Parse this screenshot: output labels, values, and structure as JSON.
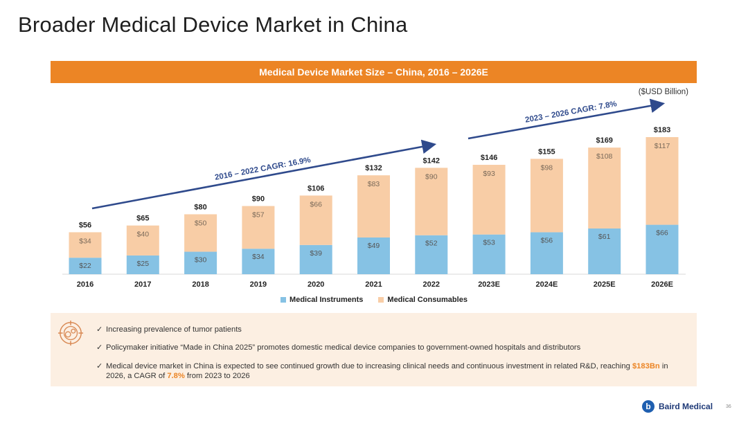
{
  "page": {
    "title": "Broader Medical Device Market in China",
    "banner": "Medical Device Market Size – China, 2016 – 2026E",
    "units": "($USD Billion)",
    "page_number": "36"
  },
  "chart_data": {
    "type": "bar",
    "stacked": true,
    "title": "Medical Device Market Size – China, 2016 – 2026E",
    "ylabel": "($USD Billion)",
    "categories": [
      "2016",
      "2017",
      "2018",
      "2019",
      "2020",
      "2021",
      "2022",
      "2023E",
      "2024E",
      "2025E",
      "2026E"
    ],
    "series": [
      {
        "name": "Medical Instruments",
        "color": "#86c2e4",
        "values": [
          22,
          25,
          30,
          34,
          39,
          49,
          52,
          53,
          56,
          61,
          66
        ],
        "labels": [
          "$22",
          "$25",
          "$30",
          "$34",
          "$39",
          "$49",
          "$52",
          "$53",
          "$56",
          "$61",
          "$66"
        ]
      },
      {
        "name": "Medical Consumables",
        "color": "#f8cda6",
        "values": [
          34,
          40,
          50,
          57,
          66,
          83,
          90,
          93,
          98,
          108,
          117
        ],
        "labels": [
          "$34",
          "$40",
          "$50",
          "$57",
          "$66",
          "$83",
          "$90",
          "$93",
          "$98",
          "$108",
          "$117"
        ]
      }
    ],
    "totals": [
      56,
      65,
      80,
      90,
      106,
      132,
      142,
      146,
      155,
      169,
      183
    ],
    "total_labels": [
      "$56",
      "$65",
      "$80",
      "$90",
      "$106",
      "$132",
      "$142",
      "$146",
      "$155",
      "$169",
      "$183"
    ],
    "ylim": [
      0,
      185
    ],
    "grid": false,
    "legend": "bottom",
    "annotations": [
      {
        "text": "2016 – 2022 CAGR: 16.9%",
        "from": "2016",
        "to": "2022"
      },
      {
        "text": "2023 – 2026 CAGR: 7.8%",
        "from": "2023E",
        "to": "2026E"
      }
    ],
    "arrow_color": "#2f4a8c"
  },
  "notes": {
    "icon": "target-gears-icon",
    "bullets": [
      {
        "text": "Increasing prevalence of tumor patients"
      },
      {
        "text": "Policymaker initiative “Made in China 2025” promotes domestic medical device companies to government-owned hospitals and distributors"
      },
      {
        "pre": "Medical device market in China is expected to see continued growth due to increasing clinical needs and continuous investment in related R&D, reaching ",
        "hl1": "$183Bn",
        "mid": " in 2026, a CAGR of ",
        "hl2": "7.8%",
        "post": " from 2023 to 2026"
      }
    ]
  },
  "footer": {
    "logo_text": "Baird Medical",
    "logo_mark": "b"
  }
}
